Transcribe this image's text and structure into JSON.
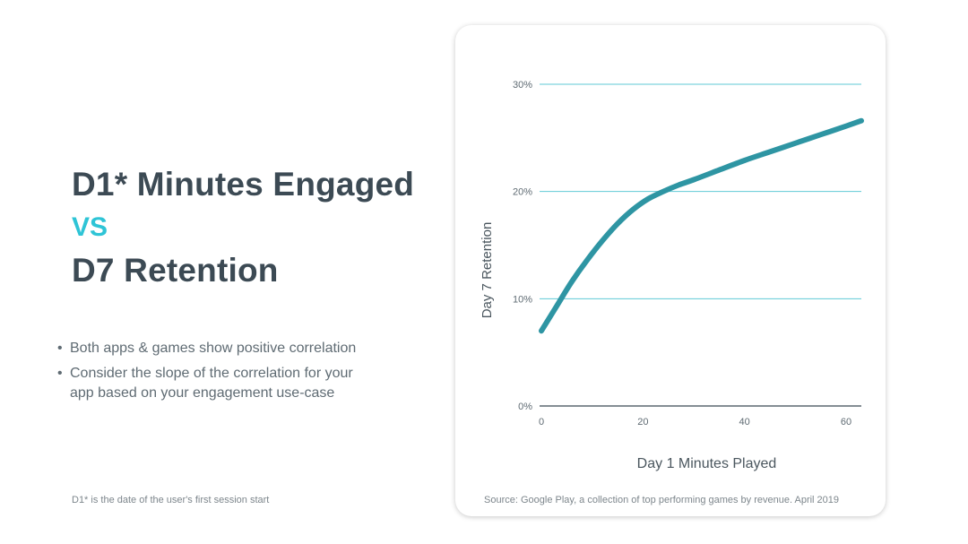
{
  "title": {
    "line1": "D1* Minutes Engaged",
    "vs": "VS",
    "line2": "D7 Retention"
  },
  "bullets": [
    "Both apps & games show positive correlation",
    "Consider the slope of the correlation for your app based on your engagement use-case"
  ],
  "footnote": "D1* is the date of the user's first session start",
  "source": "Source: Google Play, a collection of top performing games by revenue. April 2019",
  "colors": {
    "line": "#2e95a3",
    "grid": "#5fc9d6",
    "baseline": "#3c4a54",
    "accent_vs": "#2ec4d6",
    "title": "#3c4a54"
  },
  "chart_data": {
    "type": "line",
    "xlabel": "Day 1 Minutes Played",
    "ylabel": "Day 7 Retention",
    "xlim": [
      0,
      63
    ],
    "ylim": [
      0,
      30
    ],
    "x_ticks": [
      "0",
      "20",
      "40",
      "60"
    ],
    "x_tick_values": [
      0,
      20,
      40,
      60
    ],
    "y_ticks": [
      "0%",
      "10%",
      "20%",
      "30%"
    ],
    "y_tick_values": [
      0,
      10,
      20,
      30
    ],
    "grid": "horizontal",
    "series": [
      {
        "values_x": [
          0,
          3,
          6,
          9,
          12,
          15,
          18,
          21,
          24,
          27,
          30,
          35,
          40,
          45,
          50,
          55,
          60,
          63
        ],
        "values_y": [
          7.0,
          9.3,
          11.6,
          13.6,
          15.4,
          17.0,
          18.3,
          19.3,
          20.0,
          20.6,
          21.1,
          22.0,
          22.9,
          23.7,
          24.5,
          25.3,
          26.1,
          26.6
        ]
      }
    ]
  }
}
